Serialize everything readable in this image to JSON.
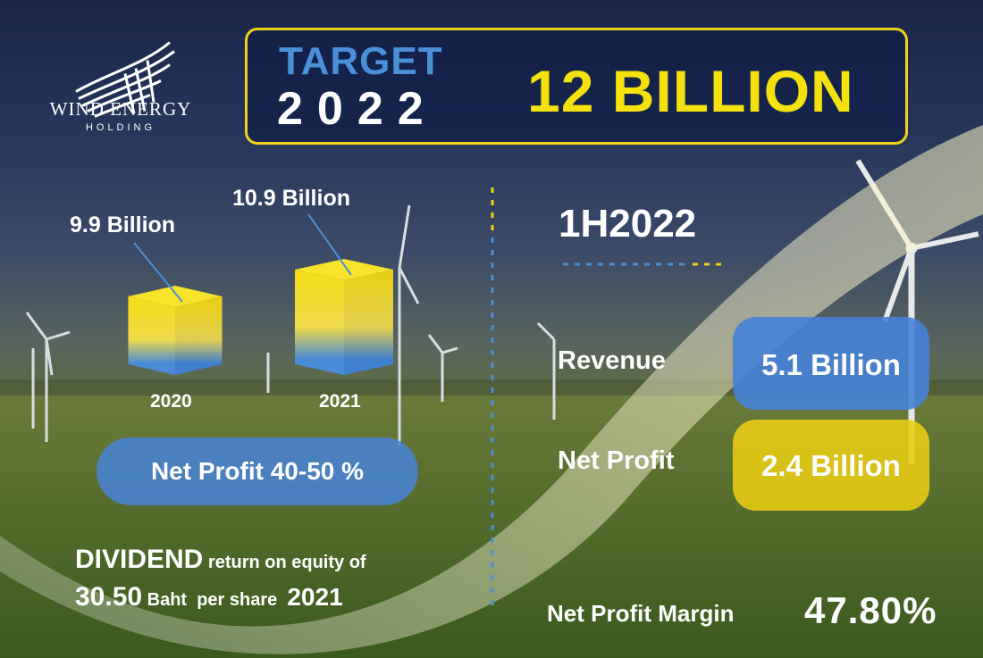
{
  "brand": {
    "name": "WIND ENERGY",
    "subtitle": "HOLDING"
  },
  "target": {
    "label": "TARGET",
    "year": "2022",
    "amount": "12 BILLION"
  },
  "chart_data": {
    "type": "bar",
    "categories": [
      "2020",
      "2021"
    ],
    "values": [
      9.9,
      10.9
    ],
    "value_labels": [
      "9.9 Billion",
      "10.9 Billion"
    ],
    "unit": "Billion",
    "colors": {
      "top": "#f2d81a",
      "bottom": "#4a8bd8"
    }
  },
  "net_profit_range": "Net Profit 40-50 %",
  "dividend": {
    "word": "DIVIDEND",
    "text1": " return on equity of",
    "amount": "30.50",
    "unit": " Baht  per share  ",
    "year": "2021"
  },
  "half_year": {
    "title": "1H2022",
    "revenue_label": "Revenue",
    "revenue_value": "5.1 Billion",
    "profit_label": "Net Profit",
    "profit_value": "2.4 Billion",
    "margin_label": "Net Profit Margin",
    "margin_value": "47.80%"
  },
  "colors": {
    "accent_yellow": "#f5e10d",
    "accent_blue": "#4a90d9",
    "navy": "#101e46"
  },
  "icons": [
    "wind-wing-logo-icon",
    "wind-turbine-icon"
  ]
}
